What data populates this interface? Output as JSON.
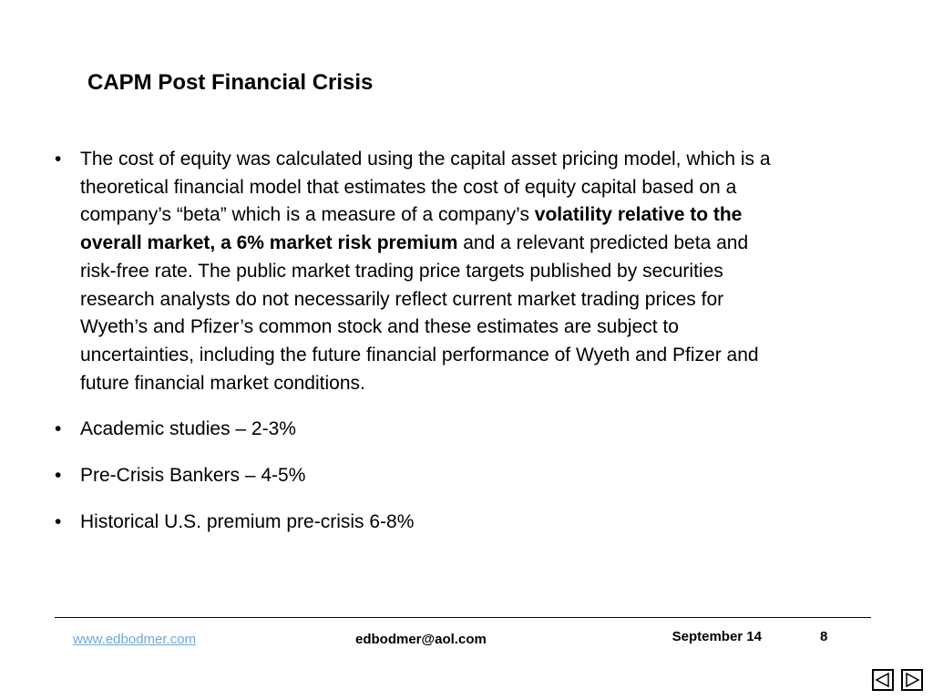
{
  "slide": {
    "title": "CAPM Post Financial Crisis",
    "bullets": [
      {
        "text_before": "The cost of equity was calculated using the capital asset pricing model, which is a theoretical financial model that estimates the cost of equity capital based on a company’s “beta” which is a measure of a company’s ",
        "text_bold": "volatility relative to the overall market, a 6% market risk premium",
        "text_after": " and a relevant predicted beta and risk-free rate. The public market trading price targets published by securities research analysts do not necessarily reflect current market trading prices for Wyeth’s and Pfizer’s common stock and these estimates are subject to uncertainties, including the future financial performance of Wyeth and Pfizer and future financial market conditions."
      },
      {
        "text": "Academic studies – 2-3%"
      },
      {
        "text": "Pre-Crisis Bankers – 4-5%"
      },
      {
        "text": "Historical U.S. premium pre-crisis 6-8%"
      }
    ],
    "bullet_char": "•"
  },
  "footer": {
    "website": "www.edbodmer.com",
    "email": "edbodmer@aol.com",
    "date": "September 14",
    "page_number": "8"
  },
  "navigation": {
    "prev_icon": "triangle-left-icon",
    "next_icon": "triangle-right-icon"
  },
  "colors": {
    "link": "#6fa8dc",
    "text": "#000000",
    "background": "#ffffff"
  }
}
